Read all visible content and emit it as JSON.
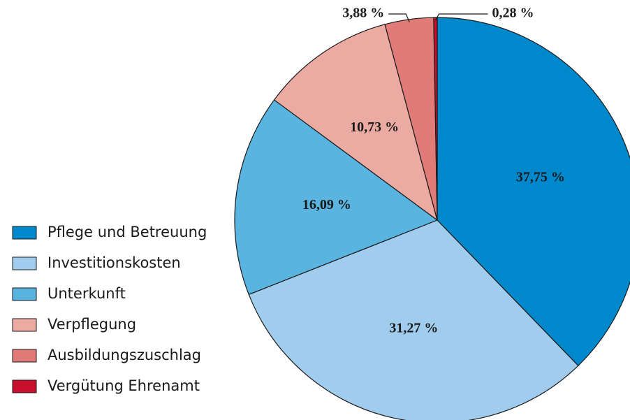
{
  "chart_data": {
    "type": "pie",
    "categories": [
      "Pflege und Betreuung",
      "Investitionskosten",
      "Unterkunft",
      "Verpflegung",
      "Ausbildungszuschlag",
      "Vergütung Ehrenamt"
    ],
    "values": [
      37.75,
      31.27,
      16.09,
      10.73,
      3.88,
      0.28
    ],
    "value_labels": [
      "37,75 %",
      "31,27 %",
      "16,09 %",
      "10,73 %",
      "3,88 %",
      "0,28 %"
    ],
    "colors": [
      "#0088cc",
      "#a0cdee",
      "#5ab4e0",
      "#ebaba2",
      "#e07b78",
      "#c8102e"
    ],
    "legend": "left"
  }
}
